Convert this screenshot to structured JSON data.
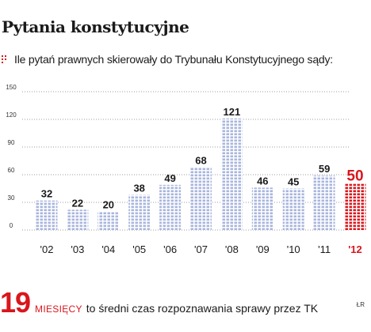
{
  "title": "Pytania konstytucyjne",
  "subtitle": "Ile pytań prawnych skierowały do Trybunału Konstytucyjnego sądy:",
  "subtitle_icon": "red-dots-icon",
  "footer": {
    "number": "19",
    "unit": "MIESIĘCY",
    "text": "to średni czas rozpoznawania sprawy przez TK"
  },
  "credit": "ŁR",
  "colors": {
    "bar": "#a9b6dd",
    "bar_highlight": "#d9161c",
    "label_highlight": "#d9161c",
    "grid": "#9e9e9e"
  },
  "chart_data": {
    "type": "bar",
    "categories": [
      "'02",
      "'03",
      "'04",
      "'05",
      "'06",
      "'07",
      "'08",
      "'09",
      "'10",
      "'11",
      "'12"
    ],
    "values": [
      32,
      22,
      20,
      38,
      49,
      68,
      121,
      46,
      45,
      59,
      50
    ],
    "highlight_index": 10,
    "ylim": [
      0,
      150
    ],
    "yticks": [
      0,
      30,
      60,
      90,
      120,
      150
    ],
    "grid": true
  }
}
